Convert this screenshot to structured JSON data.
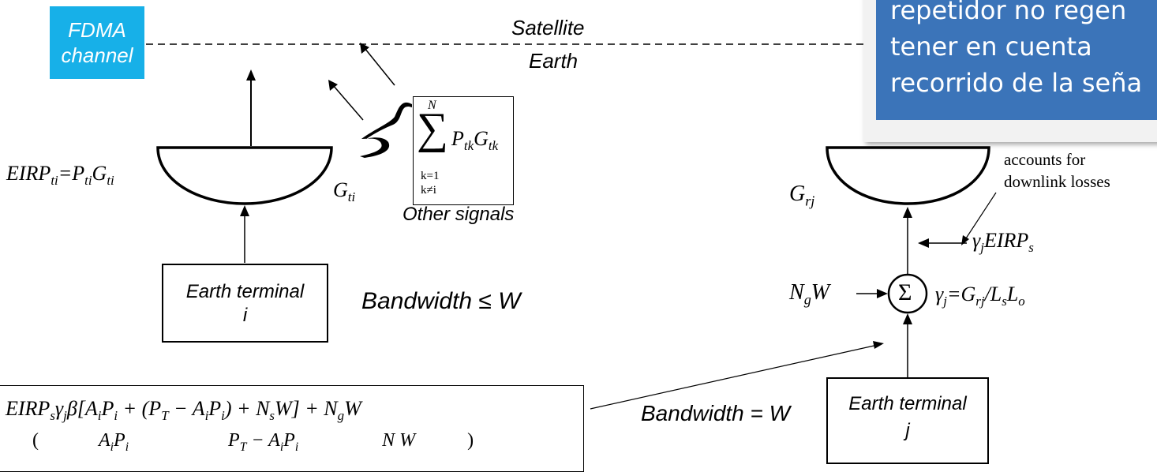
{
  "fdma": {
    "line1": "FDMA",
    "line2": "channel"
  },
  "boundary": {
    "top_label": "Satellite",
    "bottom_label": "Earth"
  },
  "callout": {
    "line1": "repetidor no regen",
    "line2": "tener    en    cuenta",
    "line3": "recorrido de la seña"
  },
  "transmitter": {
    "eirp_eq": "EIRP",
    "gain_label": "G",
    "gain_sub": "ti",
    "terminal_line1": "Earth terminal",
    "terminal_line2": "i",
    "bandwidth": "Bandwidth ≤ W"
  },
  "other_signals": {
    "sum_top": "N",
    "sum_sym": "∑",
    "sum_k1": "k=1",
    "sum_k2": "k≠i",
    "term": "P",
    "caption": "Other signals"
  },
  "receiver": {
    "gain_label": "G",
    "gain_sub": "rj",
    "note_line1": "accounts for",
    "note_line2": "downlink losses",
    "eirp_input": "EIRP",
    "noise_input": "N",
    "sigma": "Σ",
    "gamma_eq": "=G",
    "terminal_line1": "Earth terminal",
    "terminal_line2": "j",
    "bandwidth": "Bandwidth = W"
  },
  "formula": {
    "line1": "EIRP",
    "line2_left": "A",
    "line2_mid": "P",
    "line2_right": "N W"
  }
}
